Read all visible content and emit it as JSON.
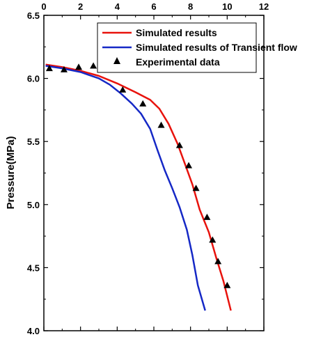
{
  "chart_data": {
    "type": "line",
    "title": "",
    "xlabel": "",
    "ylabel": "Pressure(MPa)",
    "xlim": [
      0,
      12
    ],
    "ylim": [
      4.0,
      6.5
    ],
    "x_ticks": [
      "0",
      "2",
      "4",
      "6",
      "8",
      "10",
      "12"
    ],
    "y_ticks": [
      "4.0",
      "4.5",
      "5.0",
      "5.5",
      "6.0",
      "6.5"
    ],
    "grid": false,
    "legend_position": "top-right",
    "series": [
      {
        "name": "Simulated results",
        "kind": "line",
        "color": "#e8120c",
        "x": [
          0.1,
          1.0,
          2.0,
          3.0,
          4.0,
          5.0,
          5.8,
          6.3,
          6.8,
          7.3,
          7.7,
          8.1,
          8.5,
          9.0,
          9.4,
          9.8,
          10.2
        ],
        "y": [
          6.11,
          6.09,
          6.06,
          6.02,
          5.96,
          5.89,
          5.83,
          5.76,
          5.64,
          5.48,
          5.32,
          5.16,
          4.96,
          4.78,
          4.58,
          4.39,
          4.16
        ]
      },
      {
        "name": "Simulated results of Transient flow",
        "kind": "line",
        "color": "#1528c6",
        "x": [
          0.1,
          1.0,
          2.0,
          3.0,
          3.6,
          4.2,
          4.8,
          5.3,
          5.8,
          6.2,
          6.6,
          7.0,
          7.4,
          7.8,
          8.1,
          8.4,
          8.8
        ],
        "y": [
          6.1,
          6.08,
          6.05,
          6.0,
          5.95,
          5.88,
          5.8,
          5.72,
          5.6,
          5.43,
          5.27,
          5.13,
          4.98,
          4.8,
          4.6,
          4.36,
          4.16
        ]
      },
      {
        "name": "Experimental data",
        "kind": "scatter",
        "marker": "triangle",
        "color": "#000000",
        "x": [
          0.3,
          1.1,
          1.9,
          2.7,
          4.3,
          5.4,
          6.4,
          7.4,
          7.9,
          8.3,
          8.9,
          9.2,
          9.5,
          10.0
        ],
        "y": [
          6.08,
          6.07,
          6.09,
          6.1,
          5.91,
          5.8,
          5.63,
          5.47,
          5.31,
          5.13,
          4.9,
          4.72,
          4.55,
          4.36
        ]
      }
    ]
  }
}
